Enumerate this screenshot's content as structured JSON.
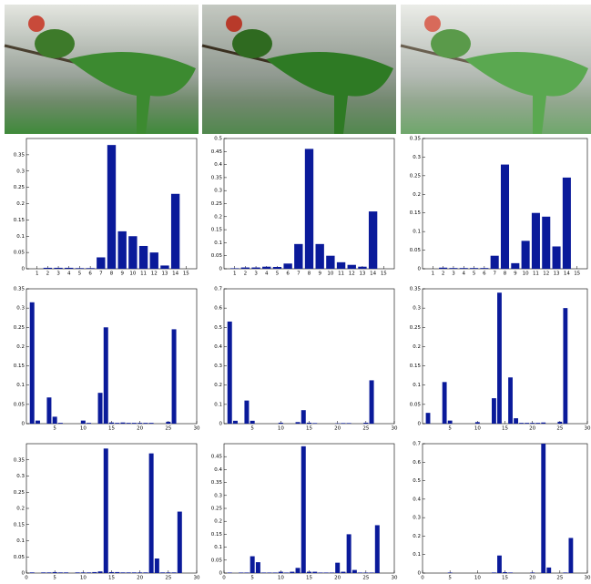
{
  "chart_data": [
    {
      "type": "bar",
      "color": "#0a1a9a",
      "x": [
        1,
        2,
        3,
        4,
        5,
        6,
        7,
        8,
        9,
        10,
        11,
        12,
        13,
        14,
        15
      ],
      "values": [
        0,
        0.003,
        0.003,
        0.003,
        0.002,
        0.002,
        0.035,
        0.38,
        0.115,
        0.1,
        0.07,
        0.05,
        0.01,
        0.23,
        0
      ],
      "xlim": [
        0,
        16
      ],
      "xticks": [
        1,
        2,
        3,
        4,
        5,
        6,
        7,
        8,
        9,
        10,
        11,
        12,
        13,
        14,
        15
      ],
      "ylim": [
        0,
        0.4
      ],
      "yticks": [
        0,
        0.05,
        0.1,
        0.15,
        0.2,
        0.25,
        0.3,
        0.35
      ]
    },
    {
      "type": "bar",
      "color": "#0a1a9a",
      "x": [
        1,
        2,
        3,
        4,
        5,
        6,
        7,
        8,
        9,
        10,
        11,
        12,
        13,
        14,
        15
      ],
      "values": [
        0.002,
        0.005,
        0.005,
        0.008,
        0.007,
        0.02,
        0.095,
        0.46,
        0.095,
        0.05,
        0.025,
        0.015,
        0.008,
        0.22,
        0
      ],
      "xlim": [
        0,
        16
      ],
      "xticks": [
        1,
        2,
        3,
        4,
        5,
        6,
        7,
        8,
        9,
        10,
        11,
        12,
        13,
        14,
        15
      ],
      "ylim": [
        0,
        0.5
      ],
      "yticks": [
        0,
        0.05,
        0.1,
        0.15,
        0.2,
        0.25,
        0.3,
        0.35,
        0.4,
        0.45,
        0.5
      ]
    },
    {
      "type": "bar",
      "color": "#0a1a9a",
      "x": [
        1,
        2,
        3,
        4,
        5,
        6,
        7,
        8,
        9,
        10,
        11,
        12,
        13,
        14,
        15
      ],
      "values": [
        0,
        0.003,
        0.002,
        0.002,
        0.002,
        0.002,
        0.035,
        0.28,
        0.015,
        0.075,
        0.15,
        0.14,
        0.06,
        0.245,
        0
      ],
      "xlim": [
        0,
        16
      ],
      "xticks": [
        1,
        2,
        3,
        4,
        5,
        6,
        7,
        8,
        9,
        10,
        11,
        12,
        13,
        14,
        15
      ],
      "ylim": [
        0,
        0.35
      ],
      "yticks": [
        0,
        0.05,
        0.1,
        0.15,
        0.2,
        0.25,
        0.3,
        0.35
      ]
    },
    {
      "type": "bar",
      "color": "#0a1a9a",
      "x": [
        1,
        2,
        3,
        4,
        5,
        6,
        7,
        8,
        9,
        10,
        11,
        12,
        13,
        14,
        15,
        16,
        17,
        18,
        19,
        20,
        21,
        22,
        23,
        24,
        25,
        26,
        27
      ],
      "values": [
        0.315,
        0.008,
        0,
        0.068,
        0.018,
        0.002,
        0,
        0,
        0,
        0.008,
        0.002,
        0,
        0.08,
        0.25,
        0.003,
        0.002,
        0.003,
        0.002,
        0.002,
        0.002,
        0.002,
        0.002,
        0,
        0,
        0.005,
        0.245,
        0
      ],
      "xlim": [
        0,
        30
      ],
      "xticks": [
        5,
        10,
        15,
        20,
        25,
        30
      ],
      "ylim": [
        0,
        0.35
      ],
      "yticks": [
        0,
        0.05,
        0.1,
        0.15,
        0.2,
        0.25,
        0.3,
        0.35
      ]
    },
    {
      "type": "bar",
      "color": "#0a1a9a",
      "x": [
        1,
        2,
        3,
        4,
        5,
        6,
        7,
        8,
        9,
        10,
        11,
        12,
        13,
        14,
        15,
        16,
        17,
        18,
        19,
        20,
        21,
        22,
        23,
        24,
        25,
        26,
        27
      ],
      "values": [
        0.53,
        0.015,
        0,
        0.12,
        0.015,
        0,
        0,
        0,
        0,
        0.005,
        0,
        0,
        0.008,
        0.07,
        0.005,
        0.003,
        0,
        0,
        0,
        0.002,
        0.003,
        0.003,
        0,
        0,
        0.005,
        0.225,
        0
      ],
      "xlim": [
        0,
        30
      ],
      "xticks": [
        5,
        10,
        15,
        20,
        25,
        30
      ],
      "ylim": [
        0,
        0.7
      ],
      "yticks": [
        0,
        0.1,
        0.2,
        0.3,
        0.4,
        0.5,
        0.6,
        0.7
      ]
    },
    {
      "type": "bar",
      "color": "#0a1a9a",
      "x": [
        1,
        2,
        3,
        4,
        5,
        6,
        7,
        8,
        9,
        10,
        11,
        12,
        13,
        14,
        15,
        16,
        17,
        18,
        19,
        20,
        21,
        22,
        23,
        24,
        25,
        26,
        27
      ],
      "values": [
        0.028,
        0,
        0,
        0.108,
        0.008,
        0,
        0,
        0,
        0,
        0.004,
        0,
        0,
        0.066,
        0.34,
        0,
        0.12,
        0.014,
        0.002,
        0.002,
        0.002,
        0.002,
        0.003,
        0,
        0,
        0.005,
        0.3,
        0
      ],
      "xlim": [
        0,
        30
      ],
      "xticks": [
        5,
        10,
        15,
        20,
        25,
        30
      ],
      "ylim": [
        0,
        0.35
      ],
      "yticks": [
        0,
        0.05,
        0.1,
        0.15,
        0.2,
        0.25,
        0.3,
        0.35
      ]
    },
    {
      "type": "bar",
      "color": "#0a1a9a",
      "x": [
        1,
        2,
        3,
        4,
        5,
        6,
        7,
        8,
        9,
        10,
        11,
        12,
        13,
        14,
        15,
        16,
        17,
        18,
        19,
        20,
        21,
        22,
        23,
        24,
        25,
        26,
        27
      ],
      "values": [
        0.002,
        0,
        0.002,
        0.002,
        0.003,
        0.002,
        0.002,
        0,
        0.002,
        0.002,
        0.002,
        0.003,
        0.005,
        0.385,
        0.003,
        0.003,
        0.002,
        0.002,
        0.002,
        0.002,
        0.002,
        0.37,
        0.045,
        0.002,
        0.002,
        0.002,
        0.19
      ],
      "xlim": [
        0,
        30
      ],
      "xticks": [
        0,
        5,
        10,
        15,
        20,
        25,
        30
      ],
      "ylim": [
        0,
        0.4
      ],
      "yticks": [
        0,
        0.05,
        0.1,
        0.15,
        0.2,
        0.25,
        0.3,
        0.35
      ]
    },
    {
      "type": "bar",
      "color": "#0a1a9a",
      "x": [
        1,
        2,
        3,
        4,
        5,
        6,
        7,
        8,
        9,
        10,
        11,
        12,
        13,
        14,
        15,
        16,
        17,
        18,
        19,
        20,
        21,
        22,
        23,
        24,
        25,
        26,
        27
      ],
      "values": [
        0.002,
        0,
        0.002,
        0.002,
        0.065,
        0.042,
        0.002,
        0.002,
        0.002,
        0.005,
        0.002,
        0.005,
        0.02,
        0.49,
        0.005,
        0.005,
        0.002,
        0.002,
        0.002,
        0.04,
        0.005,
        0.15,
        0.012,
        0.002,
        0.002,
        0.002,
        0.185
      ],
      "xlim": [
        0,
        30
      ],
      "xticks": [
        0,
        5,
        10,
        15,
        20,
        25,
        30
      ],
      "ylim": [
        0,
        0.5
      ],
      "yticks": [
        0,
        0.05,
        0.1,
        0.15,
        0.2,
        0.25,
        0.3,
        0.35,
        0.4,
        0.45
      ]
    },
    {
      "type": "bar",
      "color": "#0a1a9a",
      "x": [
        1,
        2,
        3,
        4,
        5,
        6,
        7,
        8,
        9,
        10,
        11,
        12,
        13,
        14,
        15,
        16,
        17,
        18,
        19,
        20,
        21,
        22,
        23,
        24,
        25,
        26,
        27
      ],
      "values": [
        0,
        0,
        0,
        0,
        0.003,
        0,
        0,
        0,
        0,
        0,
        0,
        0,
        0.003,
        0.095,
        0.005,
        0.003,
        0,
        0,
        0,
        0.003,
        0,
        0.7,
        0.03,
        0,
        0,
        0.003,
        0.19
      ],
      "xlim": [
        0,
        30
      ],
      "xticks": [
        0,
        5,
        10,
        15,
        20,
        25,
        30
      ],
      "ylim": [
        0,
        0.7
      ],
      "yticks": [
        0,
        0.1,
        0.2,
        0.3,
        0.4,
        0.5,
        0.6,
        0.7
      ]
    }
  ]
}
